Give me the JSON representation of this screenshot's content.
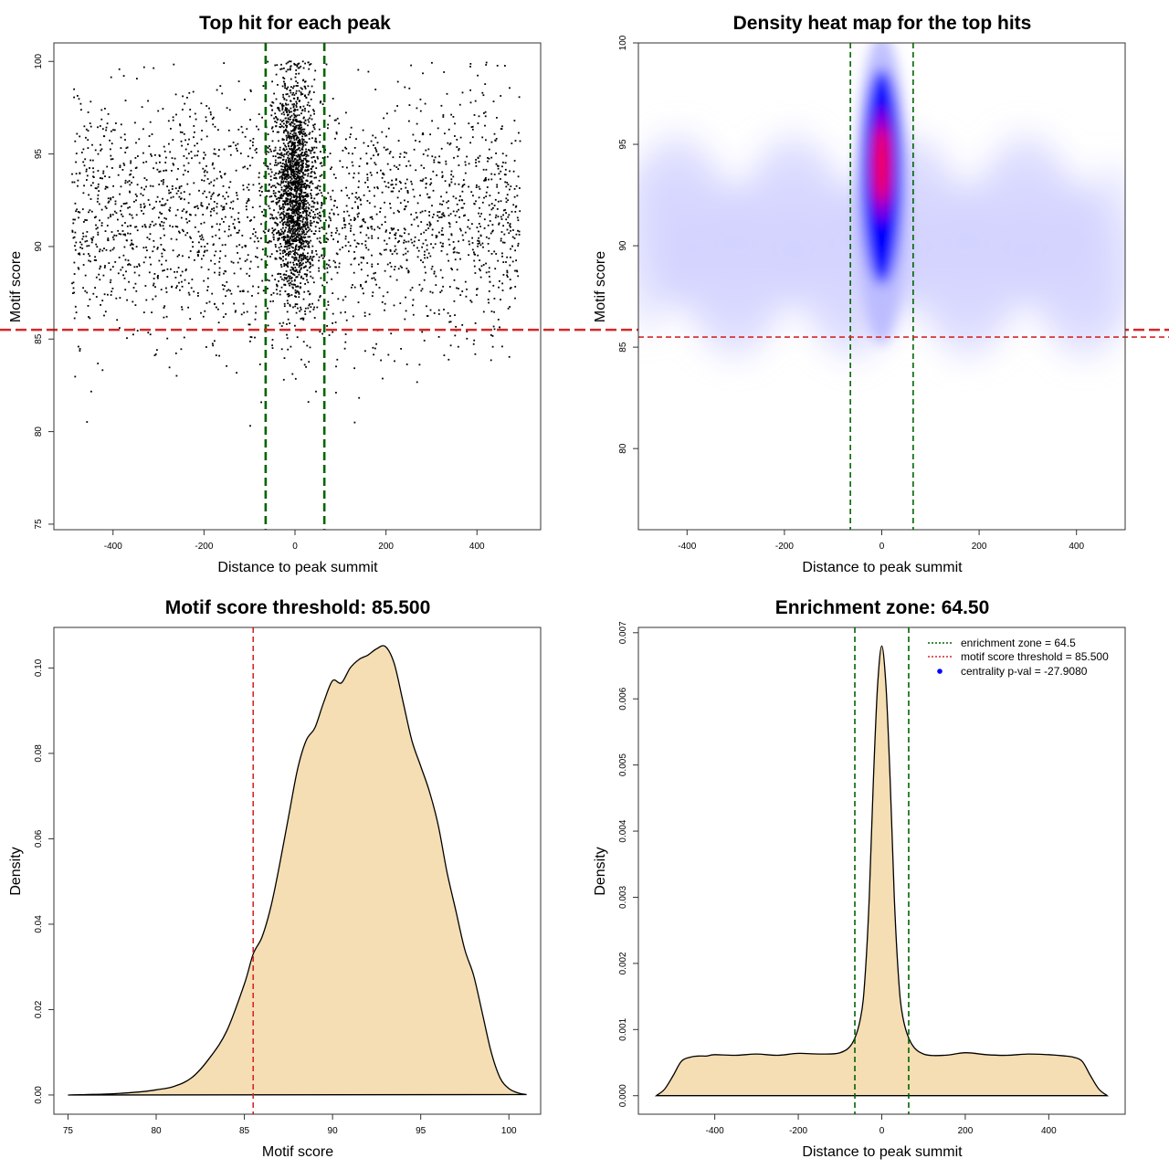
{
  "colors": {
    "threshold_line": "#d62728",
    "zone_line": "#006400",
    "fill": "#f5deb3",
    "heat_low": "#ffffff",
    "heat_mid": "#0000ff",
    "heat_high": "#ff0000",
    "legend_point": "#0000ff"
  },
  "chart_data": [
    {
      "type": "scatter",
      "title": "Top hit for each peak",
      "xlabel": "Distance to peak summit",
      "ylabel": "Motif score",
      "xlim": [
        -530,
        540
      ],
      "ylim": [
        74.7,
        101
      ],
      "xticks": [
        -400,
        -200,
        0,
        200,
        400
      ],
      "xtick_labels": [
        "-400",
        "-200",
        "0",
        "200",
        "400"
      ],
      "yticks": [
        75,
        80,
        85,
        90,
        95,
        100
      ],
      "ytick_labels": [
        "75",
        "80",
        "85",
        "90",
        "95",
        "100"
      ],
      "hline_threshold": 85.5,
      "vlines_zone": [
        -64.5,
        64.5
      ],
      "background_points": {
        "x_range": [
          -490,
          495
        ],
        "score_peak": 91.5,
        "score_sd": 3.3,
        "count": 2400
      },
      "central_points": {
        "x_sd": 22,
        "score_peak": 93,
        "score_sd": 3.0,
        "count": 1800
      }
    },
    {
      "type": "heatmap",
      "title": "Density heat map for the top hits",
      "xlabel": "Distance to peak summit",
      "ylabel": "Motif score",
      "xlim": [
        -500,
        500
      ],
      "ylim": [
        76,
        100
      ],
      "xticks": [
        -400,
        -200,
        0,
        200,
        400
      ],
      "xtick_labels": [
        "-400",
        "-200",
        "0",
        "200",
        "400"
      ],
      "yticks": [
        80,
        85,
        90,
        95,
        100
      ],
      "ytick_labels": [
        "80",
        "85",
        "90",
        "95",
        "100"
      ],
      "hline_threshold": 85.5,
      "vlines_zone": [
        -64.5,
        64.5
      ],
      "hotspot": {
        "x": 0,
        "score": 94,
        "x_spread": 25,
        "score_spread": 4
      }
    },
    {
      "type": "area",
      "title": "Motif score threshold: 85.500",
      "xlabel": "Motif score",
      "ylabel": "Density",
      "xlim": [
        74.2,
        101.8
      ],
      "ylim": [
        -0.0045,
        0.1095
      ],
      "xticks": [
        75,
        80,
        85,
        90,
        95,
        100
      ],
      "xtick_labels": [
        "75",
        "80",
        "85",
        "90",
        "95",
        "100"
      ],
      "yticks": [
        0,
        0.02,
        0.04,
        0.06,
        0.08,
        0.1
      ],
      "ytick_labels": [
        "0.00",
        "0.02",
        "0.04",
        "0.06",
        "0.08",
        "0.10"
      ],
      "vline_threshold": 85.5,
      "x": [
        75,
        76,
        77,
        78,
        79,
        80,
        81,
        82,
        83,
        84,
        85,
        85.5,
        86,
        86.5,
        87,
        87.5,
        88,
        88.5,
        89,
        89.5,
        90,
        90.5,
        91,
        91.5,
        92,
        92.5,
        93,
        93.5,
        94,
        94.5,
        95,
        95.5,
        96,
        96.5,
        97,
        97.5,
        98,
        98.5,
        99,
        99.5,
        100,
        100.5,
        101
      ],
      "y": [
        0,
        0.0001,
        0.0002,
        0.0004,
        0.0007,
        0.0012,
        0.002,
        0.004,
        0.0085,
        0.015,
        0.026,
        0.033,
        0.037,
        0.044,
        0.054,
        0.065,
        0.076,
        0.083,
        0.086,
        0.092,
        0.097,
        0.0965,
        0.1,
        0.102,
        0.103,
        0.1045,
        0.105,
        0.101,
        0.092,
        0.083,
        0.077,
        0.071,
        0.063,
        0.052,
        0.043,
        0.034,
        0.028,
        0.019,
        0.01,
        0.004,
        0.0015,
        0.0005,
        0.0001
      ]
    },
    {
      "type": "area",
      "title": "Enrichment zone: 64.50",
      "xlabel": "Distance to peak summit",
      "ylabel": "Density",
      "xlim": [
        -583,
        583
      ],
      "ylim": [
        -0.00028,
        0.00708
      ],
      "xticks": [
        -400,
        -200,
        0,
        200,
        400
      ],
      "xtick_labels": [
        "-400",
        "-200",
        "0",
        "200",
        "400"
      ],
      "yticks": [
        0,
        0.001,
        0.002,
        0.003,
        0.004,
        0.005,
        0.006,
        0.007
      ],
      "ytick_labels": [
        "0.000",
        "0.001",
        "0.002",
        "0.003",
        "0.004",
        "0.005",
        "0.006",
        "0.007"
      ],
      "vlines_zone": [
        -64.5,
        64.5
      ],
      "x": [
        -540,
        -520,
        -500,
        -480,
        -460,
        -440,
        -420,
        -400,
        -350,
        -300,
        -250,
        -200,
        -150,
        -100,
        -70,
        -50,
        -40,
        -30,
        -20,
        -10,
        0,
        10,
        20,
        30,
        40,
        50,
        70,
        100,
        150,
        200,
        250,
        300,
        350,
        400,
        420,
        440,
        460,
        480,
        500,
        520,
        540
      ],
      "y": [
        0,
        0.0001,
        0.0003,
        0.00052,
        0.00058,
        0.0006,
        0.0006,
        0.00062,
        0.00061,
        0.00063,
        0.00061,
        0.00064,
        0.00063,
        0.00065,
        0.0008,
        0.0012,
        0.0018,
        0.003,
        0.0048,
        0.0062,
        0.0068,
        0.0062,
        0.0048,
        0.003,
        0.0018,
        0.0012,
        0.0008,
        0.00063,
        0.00061,
        0.00065,
        0.00062,
        0.00061,
        0.00063,
        0.00062,
        0.00061,
        0.0006,
        0.00058,
        0.00052,
        0.0003,
        0.0001,
        0
      ],
      "legend": [
        {
          "label": "enrichment zone = 64.5",
          "kind": "line",
          "color": "#006400"
        },
        {
          "label": "motif score threshold = 85.500",
          "kind": "line",
          "color": "#d62728"
        },
        {
          "label": "centrality p-val = -27.9080",
          "kind": "point",
          "color": "#0000ff"
        }
      ],
      "legend_position": "top-right"
    }
  ]
}
